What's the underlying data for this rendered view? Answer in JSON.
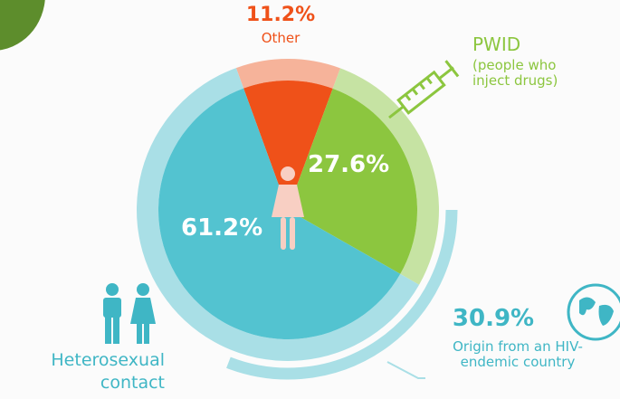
{
  "chart_data": {
    "type": "pie",
    "categories": [
      "Other",
      "PWID",
      "Heterosexual contact"
    ],
    "descriptions": [
      null,
      "(people who inject drugs)",
      null
    ],
    "values": [
      11.2,
      27.6,
      61.2
    ],
    "value_labels": [
      "11.2%",
      "27.6%",
      "61.2%"
    ],
    "colors": [
      "#ef5119",
      "#8cc63f",
      "#53c3d0"
    ],
    "ring_colors": [
      "#f6b39a",
      "#c6e3a3",
      "#a9dfe6"
    ],
    "highlight": {
      "value": 30.9,
      "value_label": "30.9%",
      "label": "Origin from an HIV-endemic country",
      "color": "#a9dfe6"
    }
  }
}
